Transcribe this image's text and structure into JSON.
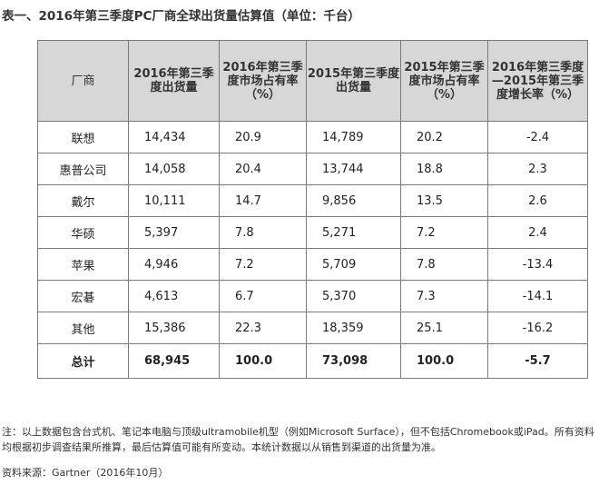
{
  "title": "表一、2016年第三季度PC厂商全球出货量估算值（单位：千台）",
  "headers": [
    "厂商",
    "2016年第三季度出货量",
    "2016年第三季度市场占有率（%）",
    "2015年第三季度出货量",
    "2015年第三季度市场占有率（%）",
    "2016年第三季度—2015年第三季度增长率（%）"
  ],
  "rows": [
    [
      "联想",
      "14,434",
      "20.9",
      "14,789",
      "20.2",
      "-2.4"
    ],
    [
      "惠普公司",
      "14,058",
      "20.4",
      "13,744",
      "18.8",
      "2.3"
    ],
    [
      "戴尔",
      "10,111",
      "14.7",
      "9,856",
      "13.5",
      "2.6"
    ],
    [
      "华硕",
      "5,397",
      "7.8",
      "5,271",
      "7.2",
      "2.4"
    ],
    [
      "苹果",
      "4,946",
      "7.2",
      "5,709",
      "7.8",
      "-13.4"
    ],
    [
      "宏碁",
      "4,613",
      "6.7",
      "5,370",
      "7.3",
      "-14.1"
    ],
    [
      "其他",
      "15,386",
      "22.3",
      "18,359",
      "25.1",
      "-16.2"
    ]
  ],
  "total": [
    "总计",
    "68,945",
    "100.0",
    "73,098",
    "100.0",
    "-5.7"
  ],
  "note": "注：以上数据包含台式机、笔记本电脑与顶级ultramobile机型（例如Microsoft Surface），但不包括Chromebook或iPad。所有资料均根据初步调查结果所推算，最后估算值可能有所变动。本统计数据以从销售到渠道的出货量为准。",
  "source": "资料来源：Gartner（2016年10月）"
}
